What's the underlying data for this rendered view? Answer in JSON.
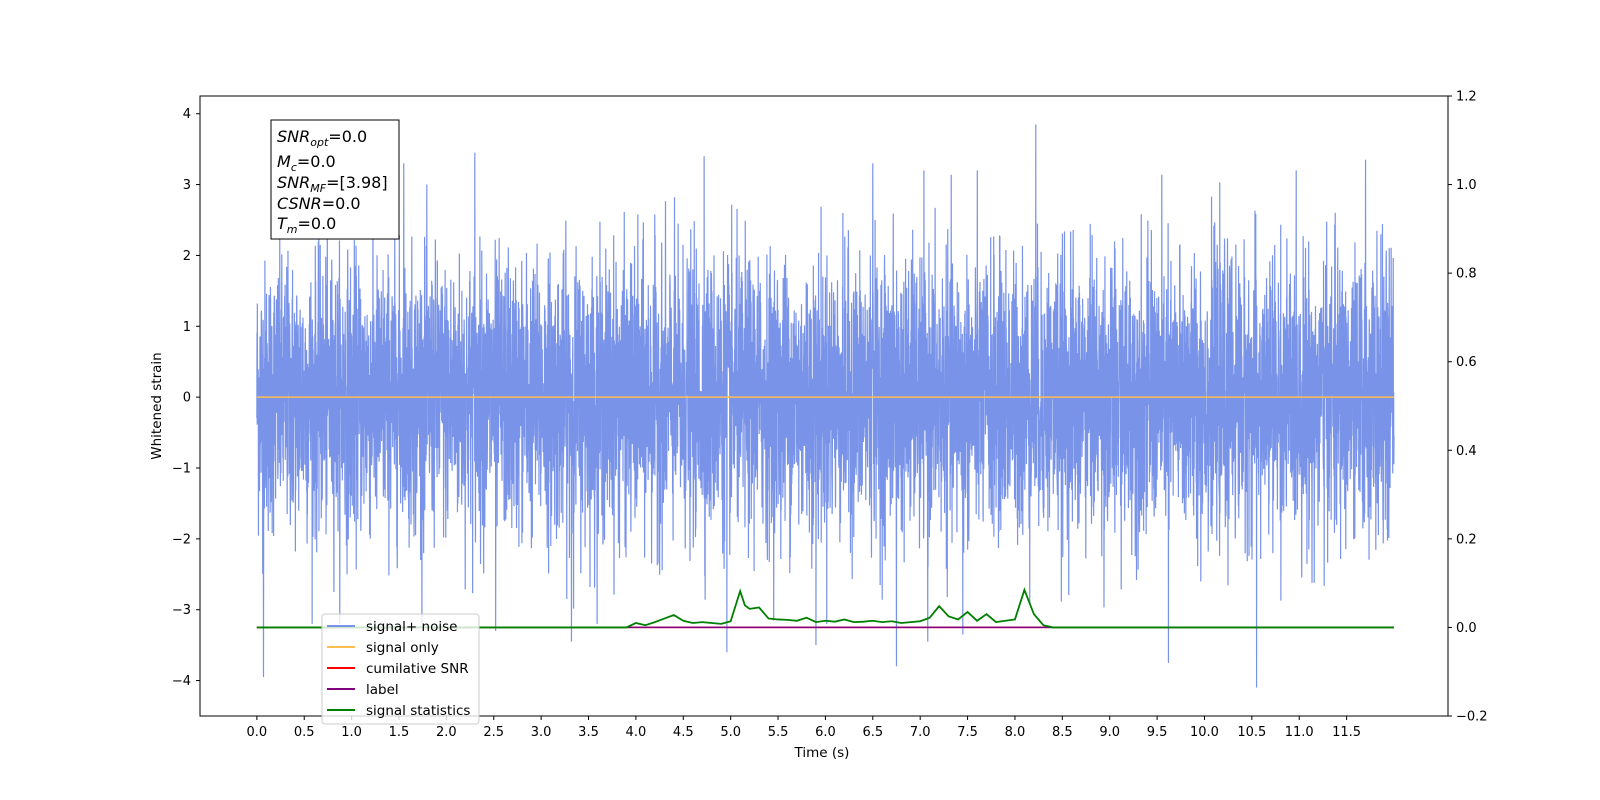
{
  "chart_data": {
    "type": "line",
    "xlabel": "Time (s)",
    "ylabel": "Whitened strain",
    "xlim": [
      -0.6,
      12.57
    ],
    "ylim": [
      -4.5,
      4.25
    ],
    "y2lim": [
      -0.2,
      1.2
    ],
    "x_ticks": [
      "0.0",
      "0.5",
      "1.0",
      "1.5",
      "2.0",
      "2.5",
      "3.0",
      "3.5",
      "4.0",
      "4.5",
      "5.0",
      "5.5",
      "6.0",
      "6.5",
      "7.0",
      "7.5",
      "8.0",
      "8.5",
      "9.0",
      "9.5",
      "10.0",
      "10.5",
      "11.0",
      "11.5"
    ],
    "y_ticks": [
      "−4",
      "−3",
      "−2",
      "−1",
      "0",
      "1",
      "2",
      "3",
      "4"
    ],
    "y2_ticks": [
      "−0.2",
      "0.0",
      "0.2",
      "0.4",
      "0.6",
      "0.8",
      "1.0",
      "1.2"
    ],
    "grid": false,
    "legend_position": "lower-left",
    "stats_box": {
      "snr_opt": {
        "main": "SNR",
        "sub": "opt",
        "value": "=0.0"
      },
      "mc": {
        "main": "M",
        "sub": "c",
        "value": "=0.0"
      },
      "snr_mf": {
        "main": "SNR",
        "sub": "MF",
        "value": "=[3.98]"
      },
      "csnr": {
        "main": "CSNR",
        "sub": "",
        "value": "=0.0"
      },
      "tm": {
        "main": "T",
        "sub": "m",
        "value": "=0.0"
      }
    },
    "series": [
      {
        "name": "signal+ noise",
        "color": "#7893e8",
        "axis": "left",
        "kind": "noise",
        "x_range": [
          0.0,
          12.0
        ],
        "approx_std": 0.95,
        "spikes": [
          {
            "x": 8.22,
            "y": 3.85
          },
          {
            "x": 2.3,
            "y": 3.45
          },
          {
            "x": 4.72,
            "y": 3.4
          },
          {
            "x": 11.7,
            "y": 3.35
          },
          {
            "x": 6.5,
            "y": 3.3
          },
          {
            "x": 1.55,
            "y": 3.3
          },
          {
            "x": 0.07,
            "y": -3.95
          },
          {
            "x": 10.55,
            "y": -4.1
          },
          {
            "x": 9.62,
            "y": -3.75
          },
          {
            "x": 6.75,
            "y": -3.8
          },
          {
            "x": 3.32,
            "y": -3.45
          },
          {
            "x": 4.96,
            "y": -3.6
          },
          {
            "x": 7.45,
            "y": -3.35
          },
          {
            "x": 2.52,
            "y": -3.3
          },
          {
            "x": 5.9,
            "y": -3.5
          },
          {
            "x": 7.08,
            "y": -3.45
          }
        ]
      },
      {
        "name": "signal only",
        "color": "#ffbe4f",
        "axis": "left",
        "x": [
          0.0,
          12.0
        ],
        "y": [
          0,
          0
        ]
      },
      {
        "name": "cumilative SNR",
        "color": "#ff0000",
        "axis": "right",
        "x": [
          0.0,
          12.0
        ],
        "y": [
          0,
          0
        ]
      },
      {
        "name": "label",
        "color": "#800080",
        "axis": "right",
        "x": [
          0.0,
          12.0
        ],
        "y": [
          0,
          0
        ]
      },
      {
        "name": "signal statistics",
        "color": "#008000",
        "axis": "right",
        "x": [
          0.0,
          3.8,
          3.9,
          4.0,
          4.1,
          4.2,
          4.3,
          4.4,
          4.5,
          4.6,
          4.7,
          4.8,
          4.9,
          5.0,
          5.1,
          5.15,
          5.2,
          5.3,
          5.4,
          5.5,
          5.6,
          5.7,
          5.8,
          5.9,
          6.0,
          6.1,
          6.2,
          6.3,
          6.4,
          6.5,
          6.6,
          6.7,
          6.8,
          6.9,
          7.0,
          7.1,
          7.2,
          7.3,
          7.4,
          7.5,
          7.6,
          7.7,
          7.8,
          7.9,
          8.0,
          8.1,
          8.2,
          8.3,
          8.4,
          12.0
        ],
        "y": [
          0.0,
          0.0,
          0.0,
          0.01,
          0.005,
          0.012,
          0.02,
          0.028,
          0.015,
          0.01,
          0.012,
          0.01,
          0.008,
          0.014,
          0.082,
          0.05,
          0.042,
          0.045,
          0.02,
          0.018,
          0.017,
          0.015,
          0.022,
          0.012,
          0.015,
          0.013,
          0.018,
          0.012,
          0.013,
          0.015,
          0.012,
          0.014,
          0.01,
          0.012,
          0.014,
          0.022,
          0.048,
          0.025,
          0.018,
          0.035,
          0.015,
          0.03,
          0.012,
          0.015,
          0.018,
          0.085,
          0.03,
          0.005,
          0.0,
          0.0
        ]
      }
    ]
  }
}
